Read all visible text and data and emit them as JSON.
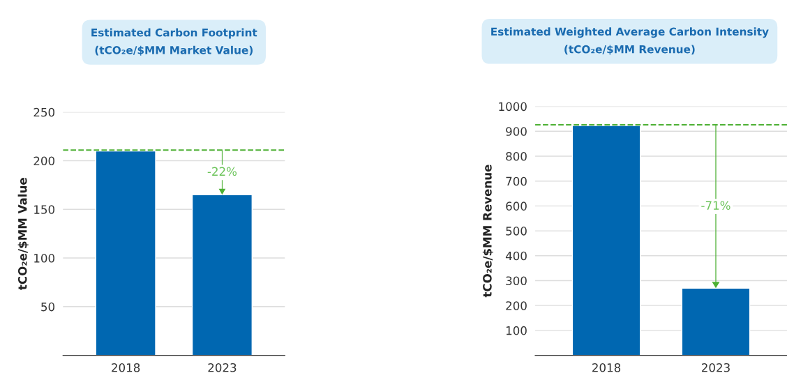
{
  "chart_data": [
    {
      "type": "bar",
      "title": "Estimated Carbon Footprint\n(tCO₂e/$MM Market Value)",
      "ylabel": "tCO₂e/$MM Value",
      "categories": [
        "2018",
        "2023"
      ],
      "values": [
        210,
        165
      ],
      "color": "#0067b1",
      "ylim": [
        0,
        250
      ],
      "yticks": [
        {
          "value": 0,
          "label": null
        },
        50,
        100,
        150,
        200,
        250
      ],
      "grid": "y",
      "ref_lines": [
        {
          "axis": "y",
          "value": 211,
          "color": "#4db034",
          "line_style": "dashed"
        }
      ],
      "annotations": [
        "-22%"
      ]
    },
    {
      "type": "bar",
      "title": "Estimated Weighted Average Carbon Intensity\n(tCO₂e/$MM Revenue)",
      "ylabel": "tCO₂e/$MM Revenue",
      "categories": [
        "2018",
        "2023"
      ],
      "values": [
        923,
        270
      ],
      "color": "#0067b1",
      "ylim": [
        0,
        1000
      ],
      "yticks": [
        {
          "value": 0,
          "label": null
        },
        100,
        200,
        300,
        400,
        500,
        600,
        700,
        800,
        900,
        1000
      ],
      "grid": "y",
      "ref_lines": [
        {
          "axis": "y",
          "value": 926,
          "color": "#4db034",
          "line_style": "dashed"
        }
      ],
      "annotations": [
        "-71%"
      ]
    }
  ]
}
